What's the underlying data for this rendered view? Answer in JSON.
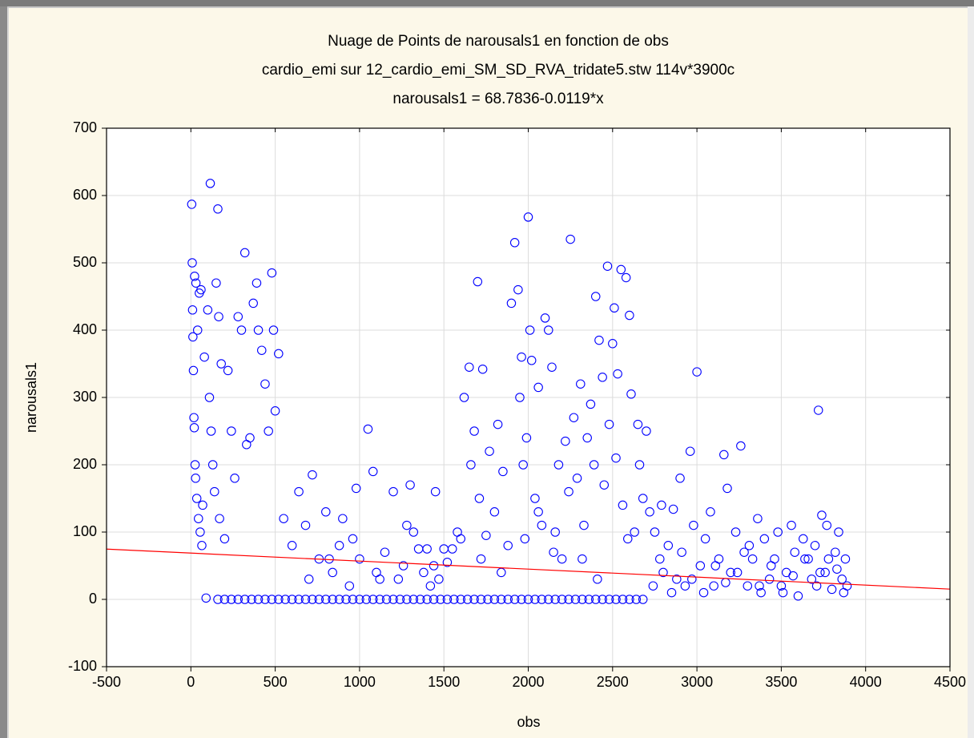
{
  "chart_data": {
    "type": "scatter",
    "title": "Nuage de Points de narousals1 en fonction de obs",
    "subtitle": "cardio_emi sur 12_cardio_emi_SM_SD_RVA_tridate5.stw 114v*3900c",
    "annotation": "narousals1 = 68.7836-0.0119*x",
    "x_label": "obs",
    "y_label": "narousals1",
    "color": "#0000ff",
    "grid": true,
    "xlim": [
      -500,
      4500
    ],
    "xticks": [
      -500,
      0,
      500,
      1000,
      1500,
      2000,
      2500,
      3000,
      3500,
      4000,
      4500
    ],
    "ylim": [
      -100,
      700
    ],
    "yticks": [
      -100,
      0,
      100,
      200,
      300,
      400,
      500,
      600,
      700
    ],
    "fit": {
      "intercept": 68.7836,
      "slope": -0.0119,
      "color": "#ff0000"
    },
    "x": [
      5,
      8,
      10,
      12,
      15,
      18,
      20,
      22,
      25,
      28,
      30,
      35,
      40,
      45,
      50,
      55,
      60,
      65,
      70,
      80,
      90,
      100,
      110,
      115,
      120,
      130,
      140,
      150,
      160,
      165,
      170,
      180,
      200,
      220,
      240,
      260,
      280,
      300,
      320,
      330,
      350,
      370,
      390,
      400,
      420,
      440,
      460,
      480,
      490,
      500,
      520,
      550,
      600,
      640,
      680,
      720,
      760,
      800,
      840,
      880,
      900,
      940,
      980,
      1000,
      1050,
      1080,
      1100,
      1150,
      1200,
      1230,
      1260,
      1300,
      1320,
      1350,
      1380,
      1400,
      1420,
      1450,
      1470,
      1500,
      1520,
      1550,
      1580,
      1600,
      700,
      820,
      960,
      1120,
      1280,
      1440,
      1620,
      1650,
      1680,
      1700,
      1710,
      1730,
      1750,
      1770,
      1800,
      1820,
      1850,
      1880,
      1900,
      1920,
      1940,
      1950,
      1960,
      1970,
      1990,
      2000,
      2010,
      2020,
      2040,
      2060,
      2080,
      2100,
      2120,
      2140,
      2160,
      2180,
      2200,
      2220,
      2250,
      2270,
      2290,
      2310,
      2330,
      2350,
      2370,
      2390,
      2400,
      2420,
      2440,
      2450,
      2470,
      2480,
      2500,
      2510,
      2530,
      2550,
      2560,
      2580,
      2600,
      2610,
      2630,
      2650,
      2680,
      2700,
      1660,
      1720,
      1840,
      1980,
      2060,
      2150,
      2240,
      2320,
      2410,
      2520,
      2590,
      2660,
      2720,
      2750,
      2780,
      2800,
      2830,
      2860,
      2880,
      2900,
      2930,
      2960,
      2980,
      3000,
      3020,
      3050,
      3080,
      3100,
      3130,
      3160,
      3180,
      3200,
      3230,
      3260,
      3280,
      3300,
      3330,
      3360,
      3380,
      3400,
      3430,
      3460,
      3480,
      3500,
      3530,
      3560,
      3580,
      3600,
      3630,
      3660,
      3680,
      3700,
      3720,
      3740,
      3760,
      3780,
      3800,
      3820,
      3840,
      3860,
      3880,
      3890,
      2740,
      2790,
      2850,
      2910,
      2970,
      3040,
      3110,
      3170,
      3240,
      3310,
      3370,
      3440,
      3510,
      3570,
      3640,
      3710,
      3770,
      3830,
      3870,
      3730,
      160,
      200,
      240,
      280,
      320,
      360,
      400,
      440,
      480,
      520,
      560,
      600,
      640,
      680,
      720,
      760,
      800,
      840,
      880,
      920,
      960,
      1000,
      1040,
      1080,
      1120,
      1160,
      1200,
      1240,
      1280,
      1320,
      1360,
      1400,
      1440,
      1480,
      1520,
      1560,
      1600,
      1640,
      1680,
      1720,
      1760,
      1800,
      1840,
      1880,
      1920,
      1960,
      2000,
      2040,
      2080,
      2120,
      2160,
      2200,
      2240,
      2280,
      2320,
      2360,
      2400,
      2440,
      2480,
      2520,
      2560,
      2600,
      2640,
      2680
    ],
    "values": [
      587,
      500,
      430,
      390,
      340,
      270,
      255,
      480,
      200,
      180,
      470,
      150,
      400,
      120,
      455,
      100,
      460,
      80,
      140,
      360,
      2,
      430,
      300,
      618,
      250,
      200,
      160,
      470,
      580,
      420,
      120,
      350,
      90,
      340,
      250,
      180,
      420,
      400,
      515,
      230,
      240,
      440,
      470,
      400,
      370,
      320,
      250,
      485,
      400,
      280,
      365,
      120,
      80,
      160,
      110,
      185,
      60,
      130,
      40,
      80,
      120,
      20,
      165,
      60,
      253,
      190,
      40,
      70,
      160,
      30,
      50,
      170,
      100,
      75,
      40,
      75,
      20,
      160,
      30,
      75,
      55,
      75,
      100,
      90,
      30,
      60,
      90,
      30,
      110,
      50,
      300,
      345,
      250,
      472,
      150,
      342,
      95,
      220,
      130,
      260,
      190,
      80,
      440,
      530,
      460,
      300,
      360,
      200,
      240,
      568,
      400,
      355,
      150,
      315,
      110,
      418,
      400,
      345,
      100,
      200,
      60,
      235,
      535,
      270,
      180,
      320,
      110,
      240,
      290,
      200,
      450,
      385,
      330,
      170,
      495,
      260,
      380,
      433,
      335,
      490,
      140,
      478,
      422,
      305,
      100,
      260,
      150,
      250,
      200,
      60,
      40,
      90,
      130,
      70,
      160,
      60,
      30,
      210,
      90,
      200,
      130,
      100,
      60,
      40,
      80,
      134,
      30,
      180,
      20,
      220,
      110,
      338,
      50,
      90,
      130,
      20,
      60,
      215,
      165,
      40,
      100,
      228,
      70,
      20,
      60,
      120,
      10,
      90,
      30,
      60,
      100,
      20,
      40,
      110,
      70,
      5,
      90,
      60,
      30,
      80,
      281,
      125,
      40,
      60,
      15,
      70,
      100,
      30,
      60,
      20,
      20,
      140,
      10,
      70,
      30,
      10,
      50,
      25,
      40,
      80,
      20,
      50,
      10,
      35,
      60,
      20,
      110,
      45,
      10,
      40,
      0,
      0,
      0,
      0,
      0,
      0,
      0,
      0,
      0,
      0,
      0,
      0,
      0,
      0,
      0,
      0,
      0,
      0,
      0,
      0,
      0,
      0,
      0,
      0,
      0,
      0,
      0,
      0,
      0,
      0,
      0,
      0,
      0,
      0,
      0,
      0,
      0,
      0,
      0,
      0,
      0,
      0,
      0,
      0,
      0,
      0,
      0,
      0,
      0,
      0,
      0,
      0,
      0,
      0,
      0,
      0,
      0,
      0,
      0,
      0,
      0,
      0,
      0,
      0
    ]
  }
}
